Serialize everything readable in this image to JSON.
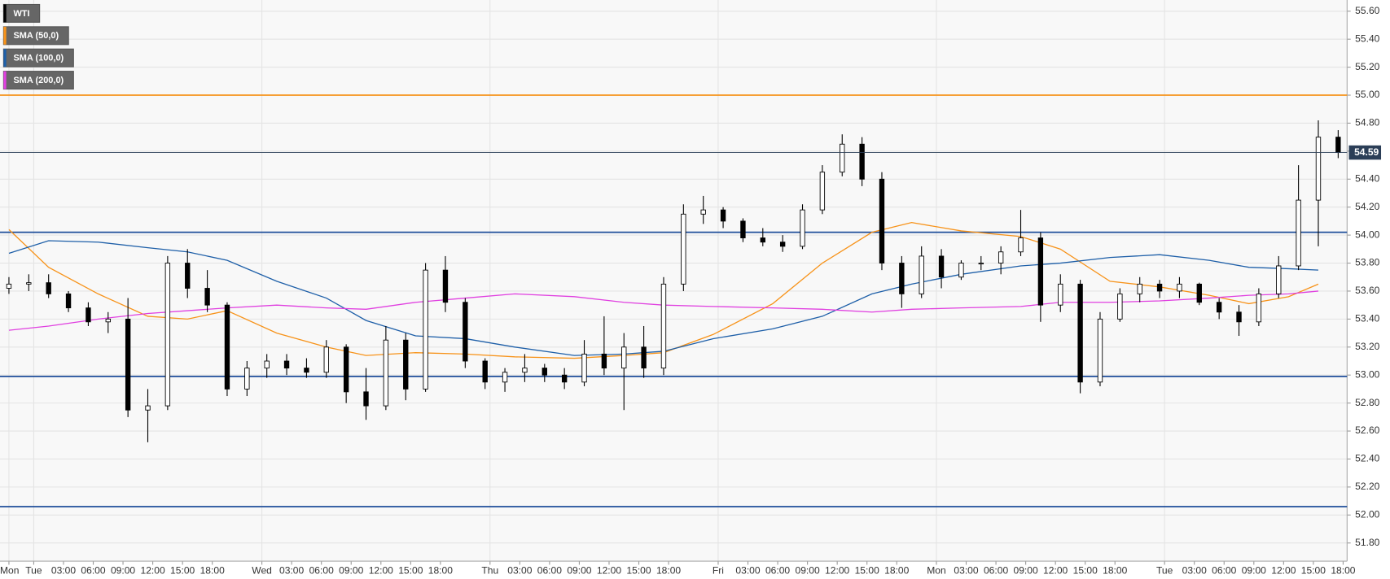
{
  "chart_data": {
    "type": "candlestick",
    "xlim": [
      -0.9,
      134.9
    ],
    "ylim": [
      51.67,
      55.68
    ],
    "grid": true,
    "legend": "top-left",
    "xticks": [
      {
        "value": 0,
        "label": "Mon"
      },
      {
        "value": 2.5,
        "label": "Tue"
      },
      {
        "value": 5.5,
        "label": "03:00"
      },
      {
        "value": 8.5,
        "label": "06:00"
      },
      {
        "value": 11.5,
        "label": "09:00"
      },
      {
        "value": 14.5,
        "label": "12:00"
      },
      {
        "value": 17.5,
        "label": "15:00"
      },
      {
        "value": 20.5,
        "label": "18:00"
      },
      {
        "value": 25.5,
        "label": "Wed"
      },
      {
        "value": 28.5,
        "label": "03:00"
      },
      {
        "value": 31.5,
        "label": "06:00"
      },
      {
        "value": 34.5,
        "label": "09:00"
      },
      {
        "value": 37.5,
        "label": "12:00"
      },
      {
        "value": 40.5,
        "label": "15:00"
      },
      {
        "value": 43.5,
        "label": "18:00"
      },
      {
        "value": 48.5,
        "label": "Thu"
      },
      {
        "value": 51.5,
        "label": "03:00"
      },
      {
        "value": 54.5,
        "label": "06:00"
      },
      {
        "value": 57.5,
        "label": "09:00"
      },
      {
        "value": 60.5,
        "label": "12:00"
      },
      {
        "value": 63.5,
        "label": "15:00"
      },
      {
        "value": 66.5,
        "label": "18:00"
      },
      {
        "value": 71.5,
        "label": "Fri"
      },
      {
        "value": 74.5,
        "label": "03:00"
      },
      {
        "value": 77.5,
        "label": "06:00"
      },
      {
        "value": 80.5,
        "label": "09:00"
      },
      {
        "value": 83.5,
        "label": "12:00"
      },
      {
        "value": 86.5,
        "label": "15:00"
      },
      {
        "value": 89.5,
        "label": "18:00"
      },
      {
        "value": 93.5,
        "label": "Mon"
      },
      {
        "value": 96.5,
        "label": "03:00"
      },
      {
        "value": 99.5,
        "label": "06:00"
      },
      {
        "value": 102.5,
        "label": "09:00"
      },
      {
        "value": 105.5,
        "label": "12:00"
      },
      {
        "value": 108.5,
        "label": "15:00"
      },
      {
        "value": 111.5,
        "label": "18:00"
      },
      {
        "value": 116.5,
        "label": "Tue"
      },
      {
        "value": 119.5,
        "label": "03:00"
      },
      {
        "value": 122.5,
        "label": "06:00"
      },
      {
        "value": 125.5,
        "label": "09:00"
      },
      {
        "value": 128.5,
        "label": "12:00"
      },
      {
        "value": 131.5,
        "label": "15:00"
      },
      {
        "value": 134.5,
        "label": "18:00"
      }
    ],
    "yticks": [
      {
        "value": 51.8,
        "label": "51.80"
      },
      {
        "value": 52.0,
        "label": "52.00"
      },
      {
        "value": 52.2,
        "label": "52.20"
      },
      {
        "value": 52.4,
        "label": "52.40"
      },
      {
        "value": 52.6,
        "label": "52.60"
      },
      {
        "value": 52.8,
        "label": "52.80"
      },
      {
        "value": 53.0,
        "label": "53.00"
      },
      {
        "value": 53.2,
        "label": "53.20"
      },
      {
        "value": 53.4,
        "label": "53.40"
      },
      {
        "value": 53.6,
        "label": "53.60"
      },
      {
        "value": 53.8,
        "label": "53.80"
      },
      {
        "value": 54.0,
        "label": "54.00"
      },
      {
        "value": 54.2,
        "label": "54.20"
      },
      {
        "value": 54.4,
        "label": "54.40"
      },
      {
        "value": 54.6,
        "label": "54.60"
      },
      {
        "value": 54.8,
        "label": "54.80"
      },
      {
        "value": 55.0,
        "label": "55.00"
      },
      {
        "value": 55.2,
        "label": "55.20"
      },
      {
        "value": 55.4,
        "label": "55.40"
      },
      {
        "value": 55.6,
        "label": "55.60"
      }
    ],
    "last_price": 54.59,
    "levels": [
      {
        "value": 55.0,
        "color": "#f7931a"
      },
      {
        "value": 54.02,
        "color": "#1f4e9a"
      },
      {
        "value": 52.99,
        "color": "#1f4e9a"
      },
      {
        "value": 52.06,
        "color": "#1f4e9a"
      }
    ],
    "candles": {
      "name": "WTI",
      "color": "#000000",
      "x": [
        0,
        2,
        4,
        6,
        8,
        10,
        12,
        14,
        16,
        18,
        20,
        22,
        24,
        26,
        28,
        30,
        32,
        34,
        36,
        38,
        40,
        42,
        44,
        46,
        48,
        50,
        52,
        54,
        56,
        58,
        60,
        62,
        64,
        66,
        68,
        70,
        72,
        74,
        76,
        78,
        80,
        82,
        84,
        86,
        88,
        90,
        92,
        94,
        96,
        98,
        100,
        102,
        104,
        106,
        108,
        110,
        112,
        114,
        116,
        118,
        120,
        122,
        124,
        126,
        128,
        130,
        132,
        134
      ],
      "open": [
        53.62,
        53.65,
        53.66,
        53.58,
        53.48,
        53.38,
        53.4,
        52.75,
        52.78,
        53.8,
        53.62,
        53.5,
        52.9,
        53.05,
        53.1,
        53.05,
        53.02,
        53.2,
        52.88,
        52.78,
        53.25,
        52.9,
        53.75,
        53.52,
        53.1,
        52.95,
        53.02,
        53.05,
        53.0,
        52.95,
        53.15,
        53.05,
        53.2,
        53.05,
        53.65,
        54.15,
        54.18,
        54.1,
        53.98,
        53.95,
        53.92,
        54.18,
        54.45,
        54.65,
        54.4,
        53.8,
        53.58,
        53.85,
        53.7,
        53.8,
        53.8,
        53.88,
        53.98,
        53.5,
        53.65,
        52.95,
        53.4,
        53.58,
        53.65,
        53.6,
        53.65,
        53.52,
        53.45,
        53.38,
        53.58,
        53.78,
        54.25,
        54.7
      ],
      "high": [
        53.7,
        53.72,
        53.72,
        53.6,
        53.52,
        53.45,
        53.55,
        52.9,
        53.85,
        53.9,
        53.75,
        53.52,
        53.1,
        53.15,
        53.15,
        53.12,
        53.25,
        53.22,
        53.05,
        53.35,
        53.3,
        53.8,
        53.85,
        53.55,
        53.12,
        53.05,
        53.15,
        53.08,
        53.05,
        53.25,
        53.42,
        53.3,
        53.35,
        53.7,
        54.22,
        54.28,
        54.2,
        54.12,
        54.05,
        54.0,
        54.22,
        54.5,
        54.72,
        54.7,
        54.45,
        53.85,
        53.92,
        53.9,
        53.82,
        53.85,
        53.92,
        54.18,
        54.02,
        53.72,
        53.68,
        53.45,
        53.62,
        53.7,
        53.68,
        53.7,
        53.66,
        53.55,
        53.5,
        53.62,
        53.85,
        54.5,
        54.82,
        54.75
      ],
      "low": [
        53.58,
        53.6,
        53.55,
        53.45,
        53.35,
        53.3,
        52.7,
        52.52,
        52.75,
        53.55,
        53.45,
        52.85,
        52.85,
        52.98,
        53.0,
        52.98,
        52.98,
        52.8,
        52.68,
        52.75,
        52.82,
        52.88,
        53.45,
        53.05,
        52.9,
        52.88,
        52.95,
        52.95,
        52.9,
        52.92,
        53.0,
        52.75,
        52.98,
        53.0,
        53.6,
        54.08,
        54.05,
        53.95,
        53.92,
        53.88,
        53.9,
        54.15,
        54.42,
        54.35,
        53.75,
        53.48,
        53.55,
        53.62,
        53.68,
        53.75,
        53.72,
        53.85,
        53.38,
        53.45,
        52.87,
        52.92,
        53.38,
        53.52,
        53.55,
        53.55,
        53.5,
        53.4,
        53.28,
        53.35,
        53.55,
        53.75,
        53.92,
        54.55
      ],
      "close": [
        53.65,
        53.66,
        53.58,
        53.48,
        53.38,
        53.4,
        52.75,
        52.78,
        53.8,
        53.62,
        53.5,
        52.9,
        53.05,
        53.1,
        53.05,
        53.02,
        53.2,
        52.88,
        52.78,
        53.25,
        52.9,
        53.75,
        53.52,
        53.1,
        52.95,
        53.02,
        53.05,
        53.0,
        52.95,
        53.15,
        53.05,
        53.2,
        53.05,
        53.65,
        54.15,
        54.18,
        54.1,
        53.98,
        53.95,
        53.92,
        54.18,
        54.45,
        54.65,
        54.4,
        53.8,
        53.58,
        53.85,
        53.7,
        53.8,
        53.8,
        53.88,
        53.98,
        53.5,
        53.65,
        52.95,
        53.4,
        53.58,
        53.65,
        53.6,
        53.65,
        53.52,
        53.45,
        53.38,
        53.58,
        53.78,
        54.25,
        54.7,
        54.59
      ]
    },
    "x": [
      0,
      4,
      9,
      14,
      18,
      22,
      27,
      32,
      36,
      41,
      46,
      51,
      57,
      62,
      66,
      71,
      77,
      82,
      87,
      91,
      96,
      102,
      106,
      111,
      116,
      121,
      125,
      129,
      132
    ],
    "series": [
      {
        "name": "SMA (50,0)",
        "color": "#f7931a",
        "values": [
          54.04,
          53.77,
          53.58,
          53.42,
          53.4,
          53.46,
          53.3,
          53.2,
          53.14,
          53.16,
          53.15,
          53.13,
          53.12,
          53.14,
          53.16,
          53.29,
          53.51,
          53.8,
          54.02,
          54.09,
          54.03,
          53.99,
          53.9,
          53.67,
          53.63,
          53.57,
          53.51,
          53.56,
          53.65
        ]
      },
      {
        "name": "SMA (100,0)",
        "color": "#1e5fa8",
        "values": [
          53.87,
          53.96,
          53.95,
          53.91,
          53.88,
          53.82,
          53.67,
          53.55,
          53.39,
          53.28,
          53.26,
          53.2,
          53.14,
          53.15,
          53.17,
          53.26,
          53.33,
          53.42,
          53.58,
          53.65,
          53.72,
          53.78,
          53.8,
          53.84,
          53.86,
          53.82,
          53.77,
          53.76,
          53.75
        ]
      },
      {
        "name": "SMA (200,0)",
        "color": "#e040e0",
        "values": [
          53.32,
          53.35,
          53.4,
          53.44,
          53.46,
          53.48,
          53.5,
          53.48,
          53.47,
          53.52,
          53.55,
          53.58,
          53.56,
          53.52,
          53.5,
          53.49,
          53.48,
          53.47,
          53.45,
          53.47,
          53.48,
          53.49,
          53.52,
          53.52,
          53.53,
          53.55,
          53.57,
          53.58,
          53.6
        ]
      }
    ]
  }
}
